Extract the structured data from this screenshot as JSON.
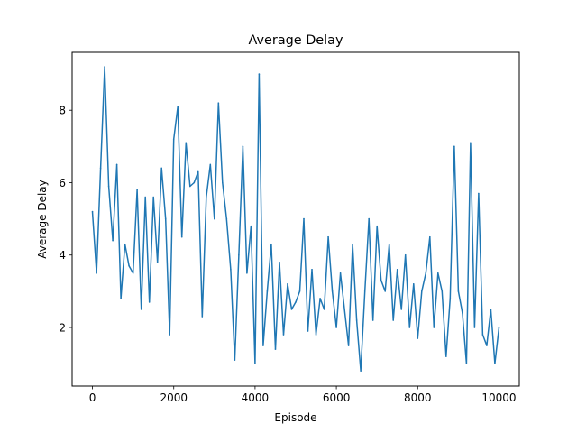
{
  "chart_data": {
    "type": "line",
    "title": "Average Delay",
    "xlabel": "Episode",
    "ylabel": "Average Delay",
    "xlim": [
      -500,
      10500
    ],
    "ylim": [
      0.38,
      9.6
    ],
    "xticks": [
      0,
      2000,
      4000,
      6000,
      8000,
      10000
    ],
    "xtick_labels": [
      "0",
      "2000",
      "4000",
      "6000",
      "8000",
      "10000"
    ],
    "yticks": [
      2,
      4,
      6,
      8
    ],
    "ytick_labels": [
      "2",
      "4",
      "6",
      "8"
    ],
    "grid": false,
    "series": [
      {
        "color": "#1f77b4",
        "x": [
          0,
          100,
          200,
          300,
          400,
          500,
          600,
          700,
          800,
          900,
          1000,
          1100,
          1200,
          1300,
          1400,
          1500,
          1600,
          1700,
          1800,
          1900,
          2000,
          2100,
          2200,
          2300,
          2400,
          2500,
          2600,
          2700,
          2800,
          2900,
          3000,
          3100,
          3200,
          3300,
          3400,
          3500,
          3600,
          3700,
          3800,
          3900,
          4000,
          4100,
          4200,
          4300,
          4400,
          4500,
          4600,
          4700,
          4800,
          4900,
          5000,
          5100,
          5200,
          5300,
          5400,
          5500,
          5600,
          5700,
          5800,
          5900,
          6000,
          6100,
          6200,
          6300,
          6400,
          6500,
          6600,
          6700,
          6800,
          6900,
          7000,
          7100,
          7200,
          7300,
          7400,
          7500,
          7600,
          7700,
          7800,
          7900,
          8000,
          8100,
          8200,
          8300,
          8400,
          8500,
          8600,
          8700,
          8800,
          8900,
          9000,
          9100,
          9200,
          9300,
          9400,
          9500,
          9600,
          9700,
          9800,
          9900,
          10000
        ],
        "values": [
          5.2,
          3.5,
          6.4,
          9.2,
          5.9,
          4.4,
          6.5,
          2.8,
          4.3,
          3.7,
          3.5,
          5.8,
          2.5,
          5.6,
          2.7,
          5.6,
          3.8,
          6.4,
          5.0,
          1.8,
          7.2,
          8.1,
          4.5,
          7.1,
          5.9,
          6.0,
          6.3,
          2.3,
          5.6,
          6.5,
          5.0,
          8.2,
          6.0,
          5.0,
          3.6,
          1.1,
          4.0,
          7.0,
          3.5,
          4.8,
          1.0,
          9.0,
          1.5,
          3.0,
          4.3,
          1.4,
          3.8,
          1.8,
          3.2,
          2.5,
          2.7,
          3.0,
          5.0,
          1.9,
          3.6,
          1.8,
          2.8,
          2.5,
          4.5,
          3.0,
          2.0,
          3.5,
          2.5,
          1.5,
          4.3,
          2.2,
          0.8,
          3.0,
          5.0,
          2.2,
          4.8,
          3.3,
          3.0,
          4.3,
          2.2,
          3.6,
          2.5,
          4.0,
          2.0,
          3.2,
          1.7,
          3.0,
          3.5,
          4.5,
          2.0,
          3.5,
          3.0,
          1.2,
          2.8,
          7.0,
          3.0,
          2.4,
          1.0,
          7.1,
          2.0,
          5.7,
          1.8,
          1.5,
          2.5,
          1.0,
          2.0
        ]
      }
    ]
  }
}
